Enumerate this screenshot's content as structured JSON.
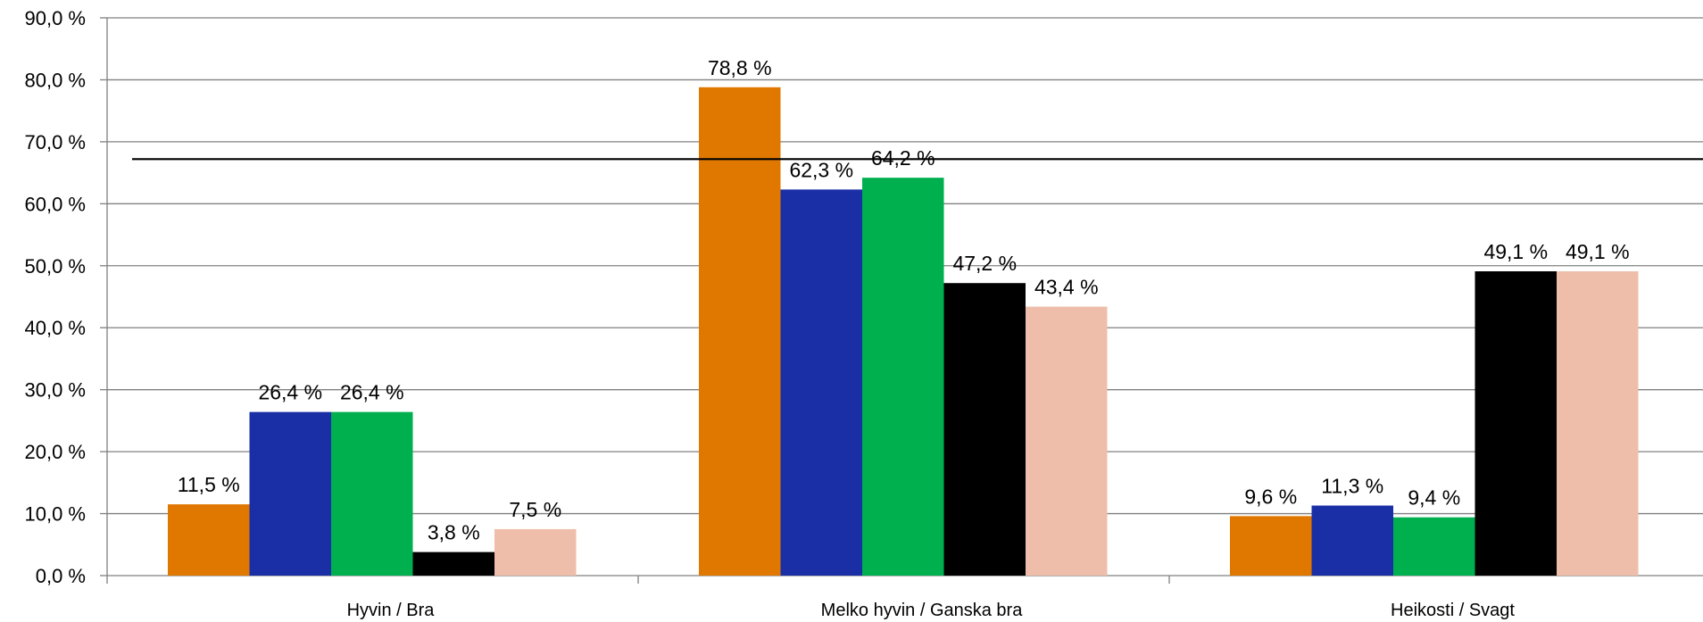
{
  "chart_data": {
    "type": "bar",
    "categories": [
      "Hyvin / Bra",
      "Melko hyvin / Ganska bra",
      "Heikosti / Svagt"
    ],
    "series": [
      {
        "color": "#E07800",
        "values": [
          11.5,
          78.8,
          9.6
        ],
        "labels": [
          "11,5 %",
          "78,8 %",
          "9,6 %"
        ]
      },
      {
        "color": "#1A2FA6",
        "values": [
          26.4,
          62.3,
          11.3
        ],
        "labels": [
          "26,4 %",
          "62,3 %",
          "11,3 %"
        ]
      },
      {
        "color": "#00B04F",
        "values": [
          26.4,
          64.2,
          9.4
        ],
        "labels": [
          "26,4 %",
          "64,2 %",
          "9,4 %"
        ]
      },
      {
        "color": "#000000",
        "values": [
          3.8,
          47.2,
          49.1
        ],
        "labels": [
          "3,8 %",
          "47,2 %",
          "49,1 %"
        ]
      },
      {
        "color": "#EEBEAA",
        "values": [
          7.5,
          43.4,
          49.1
        ],
        "labels": [
          "7,5 %",
          "43,4 %",
          "49,1 %"
        ]
      }
    ],
    "ylim": [
      0,
      90
    ],
    "yticks": [
      "0,0 %",
      "10,0 %",
      "20,0 %",
      "30,0 %",
      "40,0 %",
      "50,0 %",
      "60,0 %",
      "70,0 %",
      "80,0 %",
      "90,0 %"
    ],
    "reference_line": 67.2,
    "grid": true,
    "gridline_color": "#808080"
  }
}
